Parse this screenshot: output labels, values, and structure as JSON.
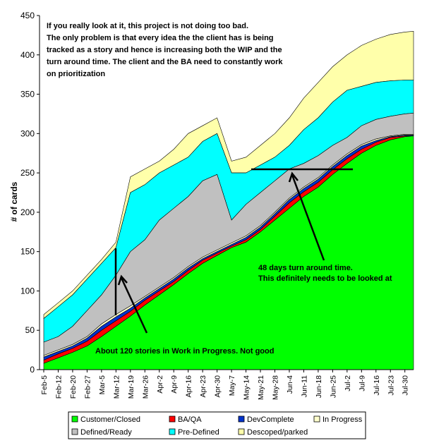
{
  "chart_data": {
    "type": "area",
    "stacked": true,
    "ylabel": "# of cards",
    "xlabel": "",
    "ylim": [
      0,
      450
    ],
    "yticks": [
      0,
      50,
      100,
      150,
      200,
      250,
      300,
      350,
      400,
      450
    ],
    "xtick_labels": [
      "Feb-5",
      "Feb-12",
      "Feb-20",
      "Feb-27",
      "Mar-5",
      "Mar-12",
      "Mar-19",
      "Mar-26",
      "Apr-2",
      "Apr-9",
      "Apr-16",
      "Apr-23",
      "Apr-30",
      "May-7",
      "May-14",
      "May-21",
      "May-28",
      "Jun-4",
      "Jun-11",
      "Jun-18",
      "Jun-25",
      "Jul-2",
      "Jul-9",
      "Jul-16",
      "Jul-23",
      "Jul-30"
    ],
    "legend_position": "bottom",
    "grid": false,
    "x": [
      0,
      1,
      2,
      3,
      4,
      5,
      6,
      7,
      8,
      9,
      10,
      11,
      12,
      13,
      14,
      15,
      16,
      17,
      18,
      19,
      20,
      21,
      22,
      23,
      24,
      25,
      25.6
    ],
    "series": [
      {
        "name": "Customer/Closed",
        "color": "#00ff00",
        "cumulative": [
          8,
          15,
          22,
          30,
          42,
          55,
          68,
          82,
          95,
          108,
          122,
          135,
          145,
          155,
          162,
          175,
          190,
          205,
          220,
          232,
          248,
          262,
          275,
          285,
          292,
          296,
          297
        ]
      },
      {
        "name": "BA/QA",
        "color": "#ff0000",
        "cumulative": [
          12,
          20,
          27,
          36,
          50,
          62,
          74,
          88,
          100,
          112,
          126,
          139,
          148,
          157,
          165,
          178,
          195,
          212,
          226,
          238,
          254,
          268,
          280,
          289,
          295,
          297,
          297
        ]
      },
      {
        "name": "DevComplete",
        "color": "#0033cc",
        "cumulative": [
          16,
          23,
          30,
          40,
          55,
          67,
          78,
          91,
          103,
          115,
          129,
          141,
          150,
          159,
          168,
          181,
          198,
          216,
          230,
          242,
          258,
          272,
          284,
          291,
          296,
          298,
          298
        ]
      },
      {
        "name": "In Progress",
        "color": "#ffffcc",
        "cumulative": [
          18,
          25,
          32,
          42,
          58,
          70,
          81,
          93,
          105,
          117,
          131,
          143,
          152,
          161,
          170,
          183,
          200,
          218,
          232,
          244,
          260,
          274,
          286,
          293,
          297,
          299,
          299
        ]
      },
      {
        "name": "Defined/Ready",
        "color": "#c0c0c0",
        "cumulative": [
          35,
          42,
          55,
          75,
          95,
          120,
          150,
          165,
          190,
          205,
          220,
          240,
          248,
          190,
          210,
          225,
          240,
          255,
          262,
          272,
          285,
          295,
          310,
          318,
          322,
          325,
          326
        ]
      },
      {
        "name": "Pre-Defined",
        "color": "#00ffff",
        "cumulative": [
          65,
          80,
          95,
          115,
          135,
          155,
          225,
          235,
          250,
          260,
          270,
          290,
          300,
          250,
          250,
          260,
          270,
          285,
          305,
          320,
          340,
          355,
          360,
          365,
          367,
          368,
          368
        ]
      },
      {
        "name": "Descoped/parked",
        "color": "#ffffaa",
        "cumulative": [
          70,
          85,
          100,
          120,
          140,
          162,
          245,
          255,
          265,
          280,
          300,
          310,
          320,
          265,
          270,
          285,
          300,
          320,
          345,
          365,
          385,
          400,
          412,
          420,
          426,
          429,
          430
        ]
      }
    ],
    "annotations": [
      "If you really look at it, this project is not doing too bad.",
      "The only problem is that every idea the the client has is being",
      "tracked as a story and hence is increasing both the WIP and the",
      "turn around time. The client and the BA need to constantly work",
      "on prioritization",
      "48 days turn around time.",
      "This definitely needs to be looked at",
      "About 120 stories in Work in Progress. Not good"
    ]
  }
}
